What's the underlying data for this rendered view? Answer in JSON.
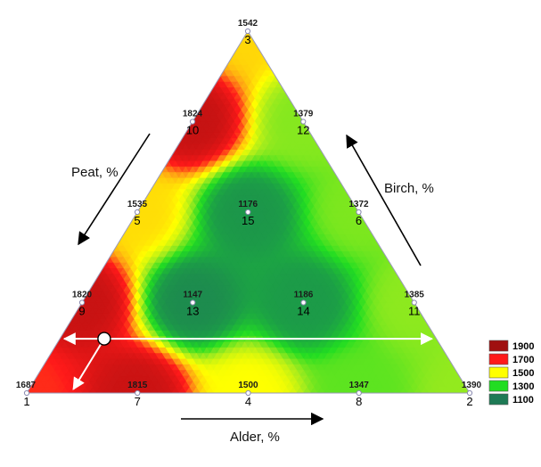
{
  "chart_data": {
    "type": "heatmap",
    "subtype": "ternary-contour",
    "axis_labels": {
      "peat": "Peat, %",
      "birch": "Birch, %",
      "alder": "Alder, %"
    },
    "points": [
      {
        "id": "1",
        "value": "1687",
        "peat": 1.0,
        "alder": 0.0,
        "birch": 0.0
      },
      {
        "id": "2",
        "value": "1390",
        "peat": 0.0,
        "alder": 1.0,
        "birch": 0.0
      },
      {
        "id": "3",
        "value": "1542",
        "peat": 0.0,
        "alder": 0.0,
        "birch": 1.0
      },
      {
        "id": "4",
        "value": "1500",
        "peat": 0.5,
        "alder": 0.5,
        "birch": 0.0
      },
      {
        "id": "5",
        "value": "1535",
        "peat": 0.5,
        "alder": 0.0,
        "birch": 0.5
      },
      {
        "id": "6",
        "value": "1372",
        "peat": 0.0,
        "alder": 0.5,
        "birch": 0.5
      },
      {
        "id": "7",
        "value": "1815",
        "peat": 0.75,
        "alder": 0.25,
        "birch": 0.0
      },
      {
        "id": "8",
        "value": "1347",
        "peat": 0.25,
        "alder": 0.75,
        "birch": 0.0
      },
      {
        "id": "9",
        "value": "1820",
        "peat": 0.75,
        "alder": 0.0,
        "birch": 0.25
      },
      {
        "id": "10",
        "value": "1824",
        "peat": 0.25,
        "alder": 0.0,
        "birch": 0.75
      },
      {
        "id": "11",
        "value": "1385",
        "peat": 0.0,
        "alder": 0.75,
        "birch": 0.25
      },
      {
        "id": "12",
        "value": "1379",
        "peat": 0.0,
        "alder": 0.25,
        "birch": 0.75
      },
      {
        "id": "13",
        "value": "1147",
        "peat": 0.5,
        "alder": 0.25,
        "birch": 0.25
      },
      {
        "id": "14",
        "value": "1186",
        "peat": 0.25,
        "alder": 0.5,
        "birch": 0.25
      },
      {
        "id": "15",
        "value": "1176",
        "peat": 0.25,
        "alder": 0.25,
        "birch": 0.5
      }
    ],
    "legend": {
      "placement": "right",
      "entries": [
        {
          "label": "1900",
          "color": "#a01010"
        },
        {
          "label": "1700",
          "color": "#ff1a1a"
        },
        {
          "label": "1500",
          "color": "#ffff00"
        },
        {
          "label": "1300",
          "color": "#22dd22"
        },
        {
          "label": "1100",
          "color": "#1e7a55"
        }
      ]
    },
    "marker": {
      "peat": 0.75,
      "alder": 0.1,
      "birch": 0.15
    }
  }
}
